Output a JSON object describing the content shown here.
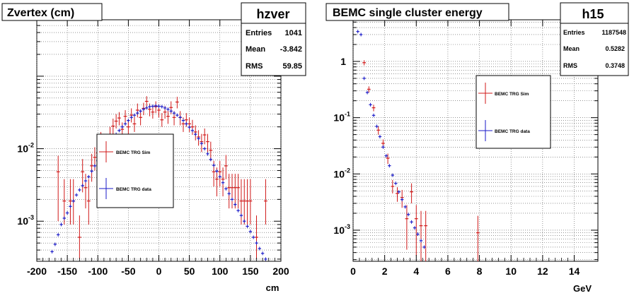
{
  "panels": [
    {
      "title": "Zvertex (cm)",
      "stats": {
        "name": "hzver",
        "rows": [
          {
            "label": "Entries",
            "value": "1041"
          },
          {
            "label": "Mean",
            "value": "-3.842"
          },
          {
            "label": "RMS",
            "value": "59.85"
          }
        ]
      },
      "legend": [
        "BEMC TRG Sim",
        "BEMC TRG data"
      ]
    },
    {
      "title": "BEMC single cluster energy",
      "stats": {
        "name": "h15",
        "rows": [
          {
            "label": "Entries",
            "value": "1187548"
          },
          {
            "label": "Mean",
            "value": "0.5282"
          },
          {
            "label": "RMS",
            "value": "0.3748"
          }
        ]
      },
      "legend": [
        "BEMC TRG Sim",
        "BEMC TRG data"
      ]
    }
  ],
  "chart_data": [
    {
      "type": "scatter",
      "title": "Zvertex (cm)",
      "xlabel": "cm",
      "ylabel": "",
      "xlim": [
        -200,
        200
      ],
      "ylog": true,
      "ylim": [
        0.00028,
        0.6
      ],
      "xticks": [
        -200,
        -150,
        -100,
        -50,
        0,
        50,
        100,
        150,
        200
      ],
      "yticks": [
        {
          "v": 0.001,
          "base": "10",
          "exp": "-3"
        },
        {
          "v": 0.01,
          "base": "10",
          "exp": "-2"
        }
      ],
      "grid": true,
      "colors": {
        "sim": "#d01818",
        "data": "#1a1ac8"
      },
      "series": [
        {
          "name": "BEMC TRG Sim",
          "key": "sim",
          "x": [
            -165,
            -155,
            -145,
            -140,
            -130,
            -125,
            -120,
            -115,
            -110,
            -105,
            -100,
            -95,
            -90,
            -85,
            -80,
            -75,
            -70,
            -65,
            -60,
            -55,
            -50,
            -45,
            -40,
            -35,
            -30,
            -25,
            -20,
            -15,
            -10,
            -5,
            0,
            5,
            10,
            15,
            20,
            25,
            30,
            35,
            40,
            45,
            50,
            55,
            60,
            65,
            70,
            75,
            80,
            85,
            90,
            95,
            100,
            105,
            110,
            115,
            120,
            125,
            130,
            135,
            140,
            145,
            150,
            160,
            175
          ],
          "y": [
            0.0048,
            0.0019,
            0.0019,
            0.0019,
            0.0006,
            0.0048,
            0.0029,
            0.0019,
            0.0058,
            0.0076,
            0.0087,
            0.0135,
            0.0125,
            0.0106,
            0.0155,
            0.0205,
            0.024,
            0.0265,
            0.0185,
            0.028,
            0.02,
            0.029,
            0.022,
            0.034,
            0.027,
            0.036,
            0.045,
            0.035,
            0.032,
            0.038,
            0.034,
            0.025,
            0.032,
            0.028,
            0.037,
            0.027,
            0.044,
            0.027,
            0.022,
            0.025,
            0.022,
            0.02,
            0.017,
            0.0145,
            0.0125,
            0.0155,
            0.0125,
            0.0095,
            0.0048,
            0.0038,
            0.0048,
            0.0038,
            0.0058,
            0.0029,
            0.0029,
            0.0029,
            0.0029,
            0.0019,
            0.0019,
            0.0019,
            0.0019,
            0.0006,
            0.0019
          ],
          "ylo": [
            0.001,
            0.0009,
            0.0009,
            0.0009,
            0.0003,
            0.0025,
            0.0015,
            0.0009,
            0.0035,
            0.005,
            0.006,
            0.01,
            0.009,
            0.0075,
            0.011,
            0.016,
            0.019,
            0.021,
            0.014,
            0.022,
            0.0155,
            0.023,
            0.017,
            0.027,
            0.021,
            0.029,
            0.037,
            0.028,
            0.026,
            0.031,
            0.027,
            0.02,
            0.026,
            0.022,
            0.03,
            0.021,
            0.036,
            0.021,
            0.017,
            0.02,
            0.017,
            0.0155,
            0.013,
            0.011,
            0.009,
            0.0115,
            0.009,
            0.0068,
            0.003,
            0.0022,
            0.003,
            0.0022,
            0.0038,
            0.0015,
            0.0015,
            0.0015,
            0.0015,
            0.0009,
            0.0009,
            0.0009,
            0.0009,
            0.0003,
            0.0009
          ],
          "yhi": [
            0.008,
            0.0038,
            0.0038,
            0.0038,
            0.0012,
            0.0072,
            0.0045,
            0.0038,
            0.0085,
            0.0105,
            0.0115,
            0.017,
            0.016,
            0.014,
            0.02,
            0.026,
            0.03,
            0.032,
            0.023,
            0.034,
            0.025,
            0.036,
            0.028,
            0.042,
            0.033,
            0.043,
            0.053,
            0.042,
            0.039,
            0.045,
            0.041,
            0.031,
            0.039,
            0.034,
            0.045,
            0.033,
            0.052,
            0.033,
            0.027,
            0.031,
            0.027,
            0.025,
            0.021,
            0.018,
            0.016,
            0.019,
            0.016,
            0.0125,
            0.0068,
            0.0055,
            0.0068,
            0.0055,
            0.0082,
            0.0045,
            0.0045,
            0.0045,
            0.0045,
            0.0038,
            0.0038,
            0.0038,
            0.0038,
            0.0012,
            0.0038
          ]
        },
        {
          "name": "BEMC TRG data",
          "key": "data",
          "x": [
            -175,
            -170,
            -165,
            -160,
            -155,
            -150,
            -145,
            -140,
            -135,
            -130,
            -125,
            -120,
            -115,
            -110,
            -105,
            -100,
            -95,
            -90,
            -85,
            -80,
            -75,
            -70,
            -65,
            -60,
            -55,
            -50,
            -45,
            -40,
            -35,
            -30,
            -25,
            -20,
            -15,
            -10,
            -5,
            0,
            5,
            10,
            15,
            20,
            25,
            30,
            35,
            40,
            45,
            50,
            55,
            60,
            65,
            70,
            75,
            80,
            85,
            90,
            95,
            100,
            105,
            110,
            115,
            120,
            125,
            130,
            135,
            140,
            145,
            150,
            155,
            160,
            165,
            170,
            175
          ],
          "y": [
            0.00038,
            0.00048,
            0.00065,
            0.0009,
            0.0011,
            0.0013,
            0.0016,
            0.0019,
            0.0023,
            0.0027,
            0.0031,
            0.0036,
            0.0041,
            0.0049,
            0.0058,
            0.0068,
            0.0079,
            0.0091,
            0.0105,
            0.012,
            0.0138,
            0.0158,
            0.0178,
            0.02,
            0.022,
            0.0245,
            0.027,
            0.029,
            0.031,
            0.033,
            0.035,
            0.0365,
            0.038,
            0.0385,
            0.039,
            0.0385,
            0.038,
            0.0365,
            0.035,
            0.033,
            0.031,
            0.029,
            0.027,
            0.0245,
            0.022,
            0.0198,
            0.0178,
            0.0158,
            0.0138,
            0.0118,
            0.01,
            0.0085,
            0.0071,
            0.0059,
            0.0049,
            0.0041,
            0.0034,
            0.0028,
            0.0024,
            0.002,
            0.0017,
            0.0014,
            0.0012,
            0.001,
            0.00085,
            0.00072,
            0.0006,
            0.0005,
            0.00042,
            0.00036,
            0.0003
          ]
        }
      ]
    },
    {
      "type": "scatter",
      "title": "BEMC single cluster energy",
      "xlabel": "GeV",
      "ylabel": "",
      "xlim": [
        0,
        15.5
      ],
      "ylog": true,
      "ylim": [
        0.00028,
        5.5
      ],
      "xticks": [
        0,
        2,
        4,
        6,
        8,
        10,
        12,
        14
      ],
      "yticks": [
        {
          "v": 0.001,
          "base": "10",
          "exp": "-3"
        },
        {
          "v": 0.01,
          "base": "10",
          "exp": "-2"
        },
        {
          "v": 0.1,
          "base": "10",
          "exp": "-1"
        },
        {
          "v": 1,
          "base": "1",
          "exp": ""
        }
      ],
      "grid": true,
      "colors": {
        "sim": "#d01818",
        "data": "#1a1ac8"
      },
      "series": [
        {
          "name": "BEMC TRG Sim",
          "key": "sim",
          "x": [
            0.7,
            1.0,
            1.3,
            1.6,
            1.9,
            2.2,
            2.5,
            2.8,
            3.1,
            3.4,
            3.7,
            4.0,
            4.3,
            4.6,
            7.9
          ],
          "y": [
            0.95,
            0.32,
            0.15,
            0.06,
            0.035,
            0.019,
            0.006,
            0.0045,
            0.0038,
            0.0016,
            0.0048,
            0.0016,
            0.0012,
            0.0012,
            0.0009
          ],
          "ylo": [
            0.85,
            0.28,
            0.13,
            0.05,
            0.029,
            0.015,
            0.0045,
            0.0032,
            0.0025,
            0.00045,
            0.003,
            0.00035,
            0.00028,
            0.00028,
            0.00028
          ],
          "yhi": [
            1.05,
            0.36,
            0.17,
            0.07,
            0.041,
            0.023,
            0.0078,
            0.0058,
            0.0052,
            0.0028,
            0.0068,
            0.0028,
            0.0022,
            0.0022,
            0.0018
          ]
        },
        {
          "name": "BEMC TRG data",
          "key": "data",
          "x": [
            0.3,
            0.5,
            0.7,
            0.9,
            1.1,
            1.3,
            1.5,
            1.7,
            1.9,
            2.1,
            2.3,
            2.5,
            2.7,
            2.9,
            3.1,
            3.3,
            3.5,
            3.7,
            3.9,
            4.1,
            4.3,
            4.5
          ],
          "y": [
            3.4,
            3.0,
            0.5,
            0.28,
            0.17,
            0.11,
            0.07,
            0.046,
            0.03,
            0.021,
            0.014,
            0.0095,
            0.0068,
            0.0048,
            0.0035,
            0.0026,
            0.0019,
            0.0014,
            0.0011,
            0.00085,
            0.00065,
            0.0005
          ]
        }
      ]
    }
  ]
}
